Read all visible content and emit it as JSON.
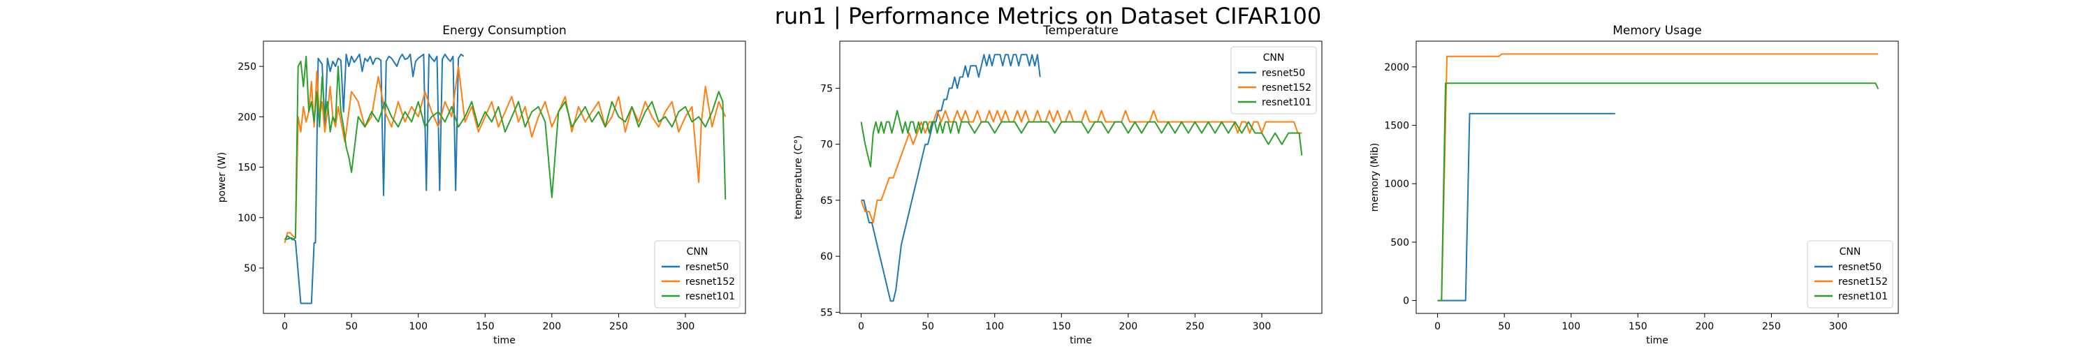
{
  "figure": {
    "title": "run1 | Performance Metrics on Dataset CIFAR100"
  },
  "series_colors": {
    "resnet50": "#1f77b4",
    "resnet152": "#ff7f0e",
    "resnet101": "#2ca02c"
  },
  "chart_data": [
    {
      "type": "line",
      "title": "Energy Consumption",
      "xlabel": "time",
      "ylabel": "power (W)",
      "xlim": [
        -16,
        345
      ],
      "ylim": [
        5,
        275
      ],
      "xticks": [
        0,
        50,
        100,
        150,
        200,
        250,
        300
      ],
      "yticks": [
        50,
        100,
        150,
        200,
        250
      ],
      "legend": {
        "title": "CNN",
        "placement": "lower right"
      },
      "series": [
        {
          "name": "resnet50",
          "x": [
            0,
            5,
            8,
            12,
            15,
            20,
            22,
            23,
            25,
            28,
            30,
            32,
            34,
            36,
            38,
            40,
            42,
            44,
            46,
            48,
            50,
            52,
            54,
            56,
            58,
            60,
            62,
            64,
            66,
            68,
            70,
            72,
            74,
            76,
            78,
            80,
            82,
            84,
            86,
            88,
            90,
            92,
            94,
            96,
            98,
            100,
            102,
            104,
            106,
            108,
            110,
            112,
            114,
            116,
            118,
            120,
            122,
            124,
            126,
            128,
            130,
            132,
            134
          ],
          "y": [
            78,
            80,
            77,
            15,
            15,
            15,
            75,
            75,
            258,
            252,
            190,
            258,
            245,
            255,
            250,
            258,
            256,
            205,
            262,
            250,
            260,
            254,
            258,
            262,
            245,
            258,
            255,
            260,
            252,
            258,
            258,
            256,
            122,
            255,
            260,
            258,
            254,
            250,
            258,
            262,
            257,
            258,
            262,
            240,
            255,
            258,
            260,
            262,
            127,
            262,
            258,
            255,
            260,
            127,
            257,
            262,
            258,
            255,
            260,
            127,
            258,
            262,
            260
          ]
        },
        {
          "name": "resnet152",
          "x": [
            0,
            2,
            4,
            6,
            8,
            10,
            12,
            14,
            16,
            18,
            20,
            22,
            24,
            26,
            28,
            30,
            32,
            34,
            36,
            38,
            40,
            45,
            50,
            55,
            60,
            65,
            70,
            75,
            80,
            85,
            90,
            95,
            100,
            105,
            110,
            115,
            120,
            125,
            130,
            135,
            140,
            145,
            150,
            155,
            160,
            165,
            170,
            175,
            180,
            185,
            190,
            195,
            200,
            205,
            210,
            215,
            220,
            225,
            230,
            235,
            240,
            245,
            250,
            255,
            260,
            265,
            270,
            275,
            280,
            285,
            290,
            295,
            300,
            305,
            310,
            312,
            315,
            320,
            325,
            330
          ],
          "y": [
            75,
            85,
            85,
            82,
            80,
            200,
            185,
            210,
            195,
            205,
            235,
            190,
            245,
            200,
            215,
            185,
            205,
            230,
            200,
            190,
            210,
            175,
            225,
            215,
            190,
            200,
            240,
            205,
            190,
            215,
            195,
            210,
            200,
            225,
            205,
            190,
            215,
            200,
            250,
            195,
            210,
            185,
            200,
            215,
            190,
            205,
            220,
            195,
            210,
            180,
            200,
            215,
            190,
            205,
            220,
            185,
            210,
            195,
            205,
            215,
            190,
            200,
            220,
            185,
            210,
            195,
            215,
            200,
            190,
            205,
            215,
            185,
            200,
            210,
            135,
            195,
            230,
            190,
            215,
            200
          ]
        },
        {
          "name": "resnet101",
          "x": [
            0,
            2,
            4,
            6,
            8,
            10,
            12,
            14,
            16,
            18,
            20,
            22,
            24,
            26,
            28,
            30,
            32,
            34,
            36,
            38,
            40,
            42,
            44,
            46,
            48,
            50,
            55,
            60,
            65,
            70,
            75,
            80,
            85,
            90,
            95,
            100,
            105,
            110,
            115,
            120,
            125,
            130,
            135,
            140,
            145,
            150,
            155,
            160,
            165,
            170,
            175,
            180,
            185,
            190,
            195,
            200,
            205,
            210,
            215,
            220,
            225,
            230,
            235,
            240,
            245,
            250,
            255,
            260,
            265,
            270,
            275,
            280,
            285,
            290,
            295,
            300,
            305,
            310,
            315,
            320,
            325,
            328,
            330
          ],
          "y": [
            78,
            82,
            80,
            78,
            80,
            250,
            255,
            230,
            260,
            205,
            215,
            195,
            225,
            190,
            240,
            200,
            215,
            185,
            200,
            195,
            250,
            205,
            190,
            170,
            160,
            145,
            200,
            190,
            205,
            195,
            215,
            200,
            190,
            205,
            195,
            215,
            190,
            200,
            205,
            195,
            210,
            190,
            200,
            215,
            190,
            205,
            195,
            210,
            185,
            200,
            215,
            190,
            205,
            210,
            195,
            120,
            205,
            215,
            190,
            200,
            210,
            195,
            205,
            190,
            215,
            200,
            195,
            210,
            190,
            205,
            215,
            195,
            200,
            190,
            205,
            210,
            195,
            200,
            190,
            205,
            225,
            215,
            118
          ]
        }
      ]
    },
    {
      "type": "line",
      "title": "Temperature",
      "xlabel": "time",
      "ylabel": "temperature (C°)",
      "xlim": [
        -16,
        345
      ],
      "ylim": [
        54.9,
        79.2
      ],
      "xticks": [
        0,
        50,
        100,
        150,
        200,
        250,
        300
      ],
      "yticks": [
        55,
        60,
        65,
        70,
        75
      ],
      "legend": {
        "title": "CNN",
        "placement": "upper right"
      },
      "series": [
        {
          "name": "resnet50",
          "x": [
            0,
            2,
            4,
            6,
            8,
            10,
            12,
            14,
            16,
            18,
            20,
            22,
            24,
            26,
            28,
            30,
            32,
            34,
            36,
            38,
            40,
            42,
            44,
            46,
            48,
            50,
            52,
            54,
            56,
            58,
            60,
            62,
            64,
            66,
            68,
            70,
            72,
            74,
            76,
            78,
            80,
            82,
            84,
            86,
            88,
            90,
            92,
            94,
            96,
            98,
            100,
            102,
            104,
            106,
            108,
            110,
            112,
            114,
            116,
            118,
            120,
            122,
            124,
            126,
            128,
            130,
            132,
            134
          ],
          "y": [
            65,
            65,
            64,
            63,
            63,
            62,
            61,
            60,
            59,
            58,
            57,
            56,
            56,
            57,
            59,
            61,
            62,
            63,
            64,
            65,
            66,
            67,
            68,
            69,
            70,
            70,
            71,
            72,
            72,
            73,
            73,
            74,
            74,
            75,
            75,
            76,
            75,
            76,
            76,
            77,
            76,
            77,
            77,
            77,
            76,
            77,
            78,
            77,
            78,
            77,
            78,
            78,
            78,
            77,
            78,
            78,
            77,
            78,
            78,
            77,
            78,
            78,
            78,
            77,
            78,
            77,
            78,
            76
          ]
        },
        {
          "name": "resnet152",
          "x": [
            0,
            3,
            6,
            9,
            12,
            15,
            18,
            21,
            24,
            27,
            30,
            33,
            36,
            39,
            42,
            45,
            48,
            51,
            54,
            57,
            60,
            63,
            66,
            69,
            72,
            75,
            78,
            81,
            84,
            87,
            90,
            93,
            96,
            99,
            102,
            105,
            108,
            111,
            114,
            117,
            120,
            123,
            126,
            129,
            132,
            135,
            138,
            141,
            144,
            147,
            150,
            153,
            156,
            159,
            162,
            165,
            168,
            171,
            174,
            177,
            180,
            183,
            186,
            189,
            192,
            195,
            198,
            201,
            204,
            207,
            210,
            213,
            216,
            219,
            222,
            225,
            228,
            231,
            234,
            237,
            240,
            243,
            246,
            249,
            252,
            255,
            258,
            261,
            264,
            267,
            270,
            273,
            276,
            279,
            282,
            285,
            288,
            291,
            294,
            297,
            300,
            303,
            306,
            309,
            312,
            315,
            318,
            321,
            324,
            327,
            330
          ],
          "y": [
            65,
            64,
            64,
            63,
            65,
            65,
            66,
            67,
            67,
            68,
            69,
            70,
            71,
            70,
            71,
            72,
            71,
            72,
            72,
            73,
            72,
            73,
            72,
            72,
            73,
            72,
            73,
            72,
            72,
            73,
            72,
            72,
            73,
            72,
            73,
            72,
            73,
            72,
            72,
            73,
            72,
            73,
            72,
            72,
            73,
            72,
            72,
            73,
            72,
            73,
            72,
            72,
            73,
            72,
            72,
            72,
            73,
            72,
            72,
            72,
            73,
            72,
            72,
            72,
            72,
            72,
            73,
            72,
            72,
            72,
            72,
            72,
            72,
            73,
            72,
            72,
            72,
            72,
            72,
            72,
            72,
            72,
            72,
            72,
            72,
            72,
            72,
            72,
            72,
            72,
            72,
            72,
            72,
            72,
            71,
            72,
            72,
            71,
            72,
            72,
            71,
            72,
            72,
            72,
            72,
            72,
            72,
            72,
            72,
            71,
            71
          ]
        },
        {
          "name": "resnet101",
          "x": [
            0,
            3,
            5,
            7,
            9,
            11,
            13,
            15,
            17,
            19,
            21,
            23,
            25,
            27,
            29,
            31,
            33,
            35,
            37,
            39,
            41,
            43,
            45,
            47,
            49,
            51,
            53,
            55,
            57,
            59,
            61,
            63,
            65,
            67,
            69,
            71,
            73,
            75,
            80,
            85,
            90,
            95,
            100,
            105,
            110,
            115,
            120,
            125,
            130,
            135,
            140,
            145,
            150,
            155,
            160,
            165,
            170,
            175,
            180,
            185,
            190,
            195,
            200,
            205,
            210,
            215,
            220,
            225,
            230,
            235,
            240,
            245,
            250,
            255,
            260,
            265,
            270,
            275,
            280,
            285,
            290,
            295,
            300,
            305,
            310,
            315,
            320,
            325,
            328,
            330
          ],
          "y": [
            72,
            70,
            69,
            68,
            71,
            72,
            71,
            72,
            71,
            72,
            72,
            71,
            72,
            73,
            72,
            71,
            72,
            71,
            72,
            72,
            71,
            72,
            71,
            72,
            72,
            71,
            72,
            72,
            71,
            72,
            71,
            72,
            72,
            71,
            72,
            72,
            71,
            72,
            72,
            71,
            72,
            72,
            71,
            72,
            72,
            72,
            71,
            72,
            72,
            72,
            72,
            71,
            72,
            72,
            72,
            72,
            71,
            72,
            72,
            71,
            72,
            72,
            71,
            72,
            71,
            72,
            72,
            71,
            72,
            71,
            72,
            71,
            72,
            71,
            72,
            71,
            72,
            71,
            72,
            71,
            72,
            71,
            71,
            70,
            71,
            70,
            71,
            71,
            71,
            69
          ]
        }
      ]
    },
    {
      "type": "line",
      "title": "Memory Usage",
      "xlabel": "time",
      "ylabel": "memory (Mib)",
      "xlim": [
        -16,
        345
      ],
      "ylim": [
        -110,
        2220
      ],
      "xticks": [
        0,
        50,
        100,
        150,
        200,
        250,
        300
      ],
      "yticks": [
        0,
        500,
        1000,
        1500,
        2000
      ],
      "legend": {
        "title": "CNN",
        "placement": "lower right"
      },
      "series": [
        {
          "name": "resnet50",
          "x": [
            0,
            21,
            24,
            133
          ],
          "y": [
            0,
            0,
            1600,
            1600
          ]
        },
        {
          "name": "resnet152",
          "x": [
            0,
            3,
            7,
            46,
            48,
            330
          ],
          "y": [
            0,
            0,
            2090,
            2090,
            2110,
            2110
          ]
        },
        {
          "name": "resnet101",
          "x": [
            0,
            3,
            6,
            328,
            330
          ],
          "y": [
            0,
            0,
            1860,
            1860,
            1810
          ]
        }
      ]
    }
  ]
}
